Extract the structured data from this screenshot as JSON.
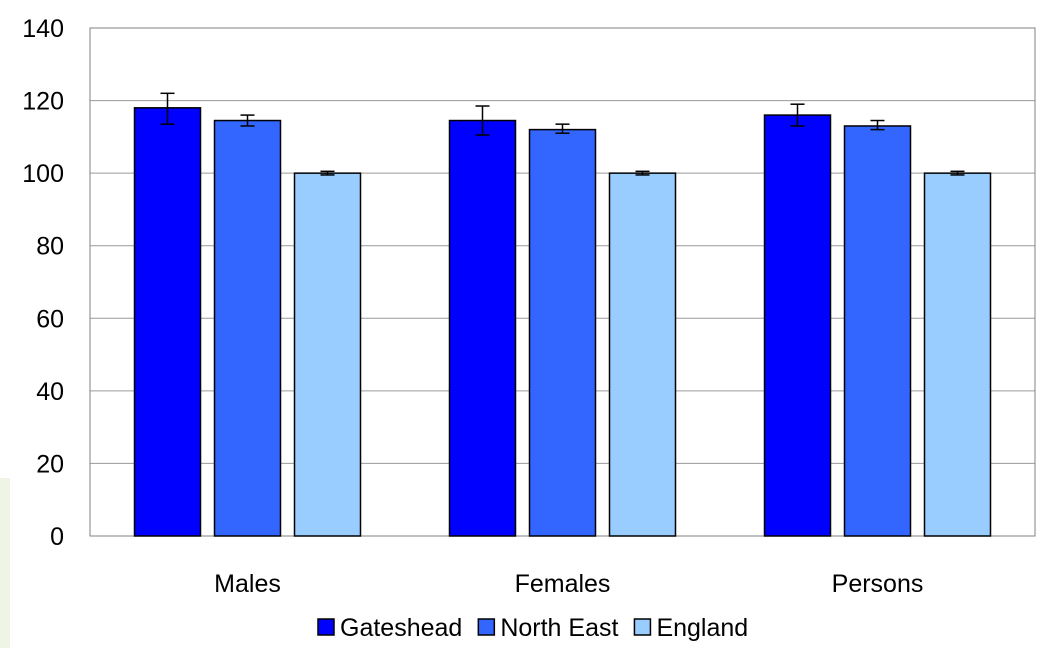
{
  "chart_data": {
    "type": "bar",
    "title": "",
    "xlabel": "",
    "ylabel": "",
    "ylim": [
      0,
      140
    ],
    "yticks": [
      0,
      20,
      40,
      60,
      80,
      100,
      120,
      140
    ],
    "grid": true,
    "legend_position": "bottom",
    "categories": [
      "Males",
      "Females",
      "Persons"
    ],
    "series": [
      {
        "name": "Gateshead",
        "color": "#0000ff",
        "values": [
          118,
          114.5,
          116
        ],
        "error_low": [
          113.5,
          110.5,
          113
        ],
        "error_high": [
          122,
          118.5,
          119
        ]
      },
      {
        "name": "North East",
        "color": "#3366ff",
        "values": [
          114.5,
          112,
          113
        ],
        "error_low": [
          113,
          111,
          112
        ],
        "error_high": [
          116,
          113.5,
          114.5
        ]
      },
      {
        "name": "England",
        "color": "#99ccff",
        "values": [
          100,
          100,
          100
        ],
        "error_low": [
          99.5,
          99.5,
          99.5
        ],
        "error_high": [
          100.5,
          100.5,
          100.5
        ]
      }
    ]
  }
}
